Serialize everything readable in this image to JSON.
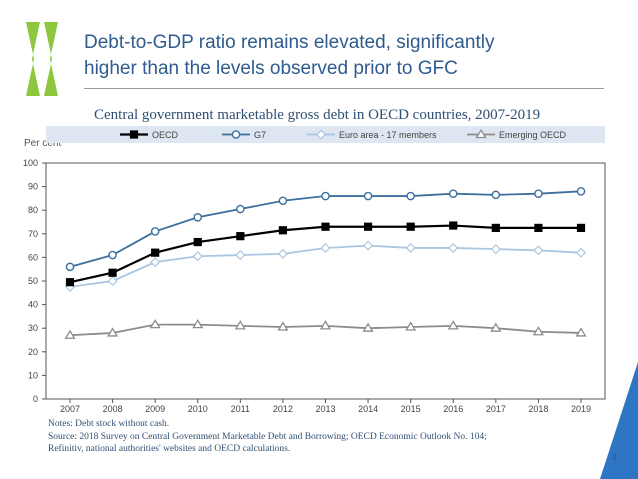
{
  "slide": {
    "title_line1": "Debt-to-GDP ratio remains elevated, significantly",
    "title_line2": "higher  than the levels observed prior to GFC",
    "page_number": "4",
    "accent_color": "#2e76c4",
    "logo_color": "#8dc63f"
  },
  "notes": {
    "line1": "Notes: Debt stock without cash.",
    "line2": "Source: 2018 Survey on Central Government Marketable Debt and Borrowing; OECD Economic Outlook No. 104;",
    "line3": "Refinitiv, national authorities' websites and OECD calculations."
  },
  "chart_data": {
    "type": "line",
    "title": "Central government marketable gross debt in OECD countries, 2007-2019",
    "ylabel": "Per cent",
    "xlabel": "",
    "x": [
      "2007",
      "2008",
      "2009",
      "2010",
      "2011",
      "2012",
      "2013",
      "2014",
      "2015",
      "2016",
      "2017",
      "2018",
      "2019"
    ],
    "ylim": [
      0,
      100
    ],
    "yticks": [
      "0",
      "10",
      "20",
      "30",
      "40",
      "50",
      "60",
      "70",
      "80",
      "90",
      "100"
    ],
    "grid": false,
    "legend_position": "top",
    "series": [
      {
        "name": "OECD",
        "color": "#000000",
        "marker": "square-filled",
        "values": [
          49.5,
          53.5,
          62,
          66.5,
          69,
          71.5,
          73,
          73,
          73,
          73.5,
          72.5,
          72.5,
          72.5
        ]
      },
      {
        "name": "G7",
        "color": "#3d6f9e",
        "marker": "circle-open",
        "values": [
          56,
          61,
          71,
          77,
          80.5,
          84,
          86,
          86,
          86,
          87,
          86.5,
          87,
          88
        ]
      },
      {
        "name": "Euro area - 17 members",
        "color": "#aac6e2",
        "marker": "diamond-open",
        "values": [
          47.5,
          50,
          58,
          60.5,
          61,
          61.5,
          64,
          65,
          64,
          64,
          63.5,
          63,
          62
        ]
      },
      {
        "name": "Emerging OECD",
        "color": "#8c8c8c",
        "marker": "triangle-open",
        "values": [
          27,
          28,
          31.5,
          31.5,
          31,
          30.5,
          31,
          30,
          30.5,
          31,
          30,
          28.5,
          28
        ]
      }
    ]
  }
}
